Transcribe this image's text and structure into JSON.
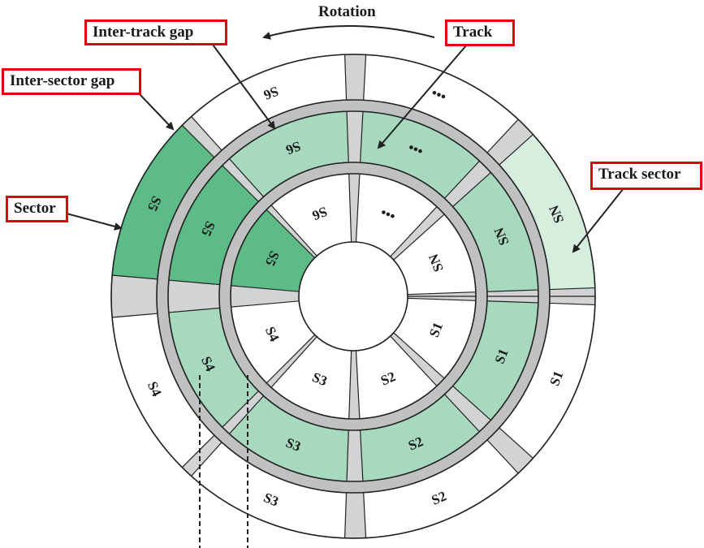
{
  "title_rotation": "Rotation",
  "callouts": {
    "inter_track_gap": "Inter-track gap",
    "inter_sector_gap": "Inter-sector gap",
    "sector": "Sector",
    "track": "Track",
    "track_sector": "Track sector"
  },
  "sector_labels": {
    "outer": [
      "S1",
      "S2",
      "S3",
      "S4",
      "S5",
      "S6",
      "•••",
      "SN"
    ],
    "middle": [
      "S1",
      "S2",
      "S3",
      "S4",
      "S5",
      "S6",
      "•••",
      "SN"
    ],
    "inner": [
      "S1",
      "S2",
      "S3",
      "S4",
      "S5",
      "S6",
      "•••",
      "SN"
    ]
  },
  "colors": {
    "highlight_sector": "#5dbb88",
    "middle_track": "#a6d9bd",
    "track_sector": "#d6eede",
    "gap": "#d2d3d5",
    "gap_dark": "#c0c1c3",
    "line": "#222222"
  }
}
